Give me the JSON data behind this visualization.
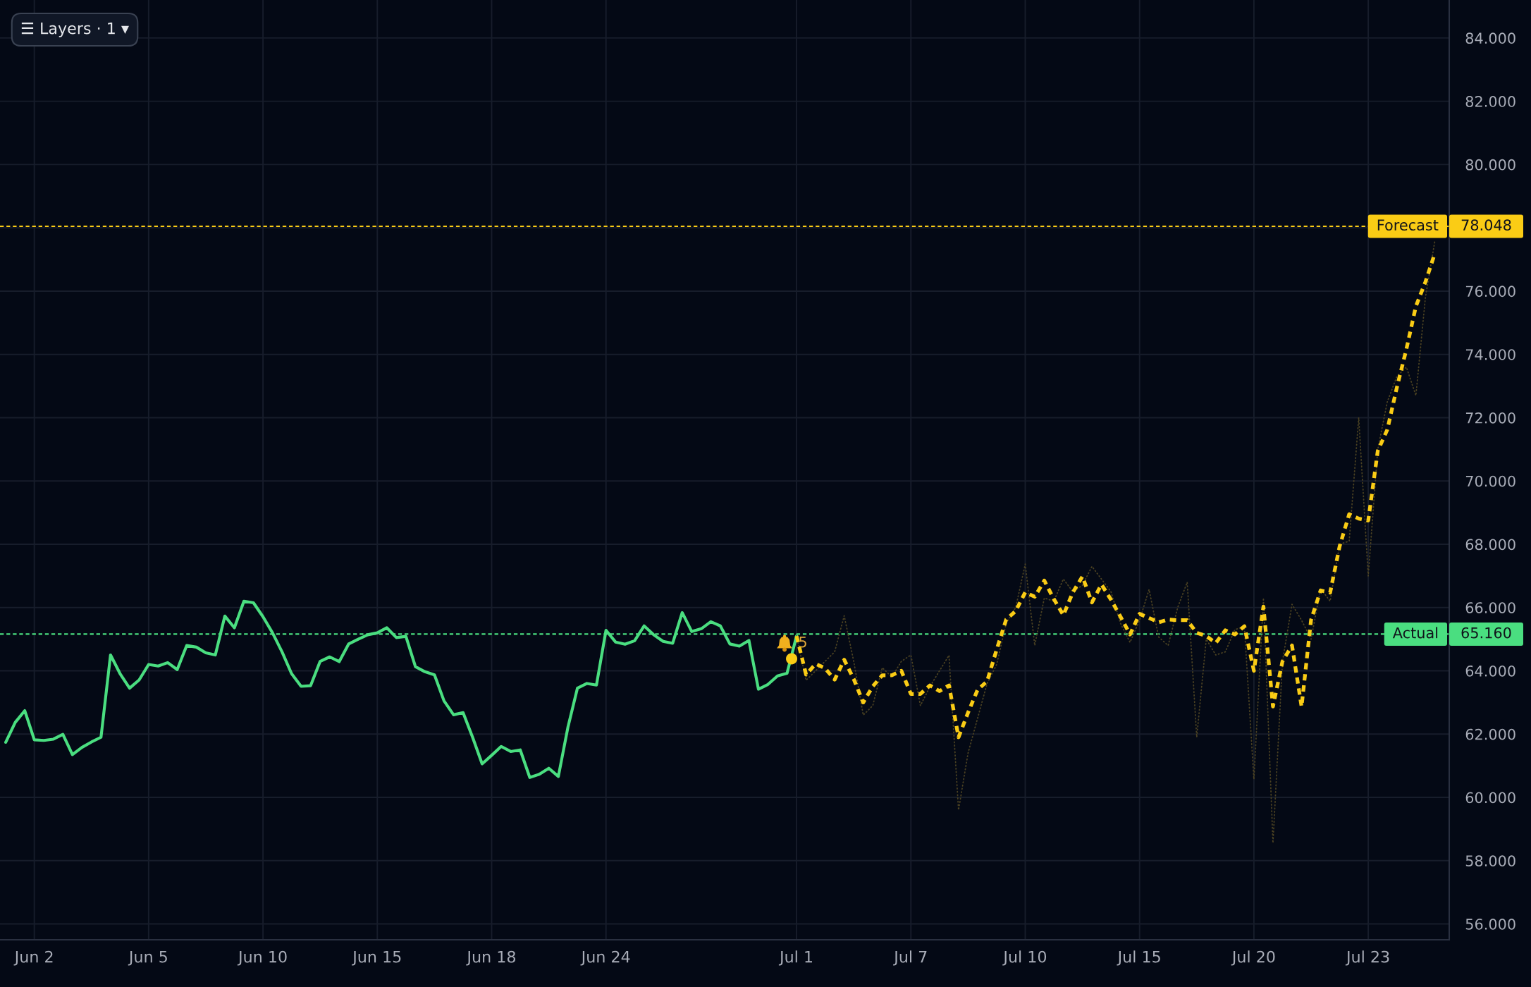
{
  "chart_data": {
    "type": "line",
    "categories": [
      null,
      null,
      null,
      "Jun 2",
      null,
      null,
      null,
      null,
      null,
      null,
      null,
      null,
      null,
      null,
      null,
      "Jun 5",
      null,
      null,
      null,
      null,
      null,
      null,
      null,
      null,
      null,
      null,
      null,
      "Jun 10",
      null,
      null,
      null,
      null,
      null,
      null,
      null,
      null,
      null,
      null,
      null,
      "Jun 15",
      null,
      null,
      null,
      null,
      null,
      null,
      null,
      null,
      null,
      null,
      null,
      "Jun 18",
      null,
      null,
      null,
      null,
      null,
      null,
      null,
      null,
      null,
      null,
      null,
      "Jun 24",
      null,
      null,
      null,
      null,
      null,
      null,
      null,
      null,
      null,
      null,
      null,
      null,
      null,
      null,
      null,
      null,
      null,
      null,
      null,
      "Jul 1",
      null,
      null,
      null,
      null,
      null,
      null,
      null,
      null,
      null,
      null,
      null,
      "Jul 7",
      null,
      null,
      null,
      null,
      null,
      null,
      null,
      null,
      null,
      null,
      null,
      "Jul 10",
      null,
      null,
      null,
      null,
      null,
      null,
      null,
      null,
      null,
      null,
      null,
      "Jul 15",
      null,
      null,
      null,
      null,
      null,
      null,
      null,
      null,
      null,
      null,
      null,
      "Jul 20",
      null,
      null,
      null,
      null,
      null,
      null,
      null,
      null,
      null,
      null,
      null,
      "Jul 23",
      null,
      null,
      null,
      null,
      null,
      null,
      null
    ],
    "series": [
      {
        "color": "#4ade80",
        "line_style": "solid",
        "values": [
          61.74,
          62.37,
          62.74,
          61.82,
          61.8,
          61.84,
          61.99,
          61.35,
          61.58,
          61.75,
          61.9,
          64.5,
          63.91,
          63.45,
          63.71,
          64.2,
          64.15,
          64.26,
          64.04,
          64.8,
          64.75,
          64.57,
          64.5,
          65.73,
          65.36,
          66.2,
          66.15,
          65.71,
          65.2,
          64.6,
          63.91,
          63.51,
          63.53,
          64.3,
          64.44,
          64.29,
          64.85,
          65.0,
          65.14,
          65.2,
          65.36,
          65.05,
          65.09,
          64.13,
          63.97,
          63.87,
          63.05,
          62.61,
          62.68,
          61.9,
          61.06,
          61.33,
          61.61,
          61.45,
          61.5,
          60.63,
          60.73,
          60.92,
          60.66,
          62.21,
          63.45,
          63.6,
          63.55,
          65.28,
          64.91,
          64.84,
          64.95,
          65.42,
          65.14,
          64.93,
          64.87,
          65.84,
          65.24,
          65.33,
          65.55,
          65.42,
          64.85,
          64.78,
          64.96,
          63.42,
          63.57,
          63.84,
          63.92,
          65.1,
          null,
          null,
          null,
          null,
          null,
          null,
          null,
          null,
          null,
          null,
          null,
          null,
          null,
          null,
          null,
          null,
          null,
          null,
          null,
          null,
          null,
          null,
          null,
          null,
          null,
          null,
          null,
          null,
          null,
          null,
          null,
          null,
          null,
          null,
          null,
          null,
          null,
          null,
          null,
          null,
          null,
          null,
          null,
          null,
          null,
          null,
          null,
          null,
          null,
          null,
          null,
          null,
          null,
          null,
          null,
          null,
          null,
          null,
          null,
          null,
          null,
          null,
          null,
          null,
          null,
          null,
          null
        ]
      },
      {
        "color": "#4a4122",
        "line_style": "dotted",
        "values": [
          null,
          null,
          null,
          null,
          null,
          null,
          null,
          null,
          null,
          null,
          null,
          null,
          null,
          null,
          null,
          null,
          null,
          null,
          null,
          null,
          null,
          null,
          null,
          null,
          null,
          null,
          null,
          null,
          null,
          null,
          null,
          null,
          null,
          null,
          null,
          null,
          null,
          null,
          null,
          null,
          null,
          null,
          null,
          null,
          null,
          null,
          null,
          null,
          null,
          null,
          null,
          null,
          null,
          null,
          null,
          null,
          null,
          null,
          null,
          null,
          null,
          null,
          null,
          null,
          null,
          null,
          null,
          null,
          null,
          null,
          null,
          null,
          null,
          null,
          null,
          null,
          null,
          null,
          null,
          null,
          null,
          null,
          null,
          65.1,
          63.7,
          64.0,
          64.3,
          64.6,
          65.74,
          64.3,
          62.6,
          62.9,
          64.1,
          63.8,
          64.3,
          64.5,
          62.9,
          63.5,
          64.0,
          64.49,
          59.6,
          61.4,
          62.5,
          63.6,
          64.2,
          65.5,
          66.0,
          67.37,
          64.8,
          66.3,
          66.2,
          66.9,
          66.5,
          66.7,
          67.3,
          66.9,
          66.5,
          65.5,
          64.9,
          65.6,
          66.57,
          65.07,
          64.8,
          66.0,
          66.8,
          61.9,
          65.0,
          64.5,
          64.6,
          65.3,
          65.4,
          60.57,
          66.3,
          58.56,
          64.3,
          66.1,
          65.6,
          65.0,
          66.6,
          66.2,
          68.0,
          68.1,
          72.0,
          67.0,
          71.0,
          72.5,
          73.3,
          73.6,
          72.7,
          75.8,
          77.6
        ]
      },
      {
        "color": "#facc15",
        "line_style": "dashed",
        "values": [
          null,
          null,
          null,
          null,
          null,
          null,
          null,
          null,
          null,
          null,
          null,
          null,
          null,
          null,
          null,
          null,
          null,
          null,
          null,
          null,
          null,
          null,
          null,
          null,
          null,
          null,
          null,
          null,
          null,
          null,
          null,
          null,
          null,
          null,
          null,
          null,
          null,
          null,
          null,
          null,
          null,
          null,
          null,
          null,
          null,
          null,
          null,
          null,
          null,
          null,
          null,
          null,
          null,
          null,
          null,
          null,
          null,
          null,
          null,
          null,
          null,
          null,
          null,
          null,
          null,
          null,
          null,
          null,
          null,
          null,
          null,
          null,
          null,
          null,
          null,
          null,
          null,
          null,
          null,
          null,
          null,
          null,
          null,
          65.1,
          63.88,
          64.22,
          64.08,
          63.72,
          64.35,
          63.74,
          63.0,
          63.51,
          63.86,
          63.86,
          64.0,
          63.27,
          63.27,
          63.54,
          63.36,
          63.54,
          61.9,
          62.68,
          63.4,
          63.67,
          64.67,
          65.62,
          65.89,
          66.48,
          66.34,
          66.85,
          66.27,
          65.76,
          66.48,
          66.98,
          66.16,
          66.73,
          66.25,
          65.71,
          65.15,
          65.8,
          65.67,
          65.53,
          65.62,
          65.6,
          65.6,
          65.2,
          65.1,
          64.88,
          65.28,
          65.15,
          65.41,
          64.0,
          66.03,
          62.87,
          64.3,
          64.8,
          62.87,
          65.61,
          66.54,
          66.47,
          67.94,
          68.95,
          68.81,
          68.75,
          70.95,
          71.62,
          72.95,
          74.16,
          75.52,
          76.29,
          77.2
        ]
      }
    ],
    "ylim": [
      55.5,
      85.2
    ],
    "yticks": [
      {
        "value": 56,
        "label": "56.000"
      },
      {
        "value": 58,
        "label": "58.000"
      },
      {
        "value": 60,
        "label": "60.000"
      },
      {
        "value": 62,
        "label": "62.000"
      },
      {
        "value": 64,
        "label": "64.000"
      },
      {
        "value": 66,
        "label": "66.000"
      },
      {
        "value": 68,
        "label": "68.000"
      },
      {
        "value": 70,
        "label": "70.000"
      },
      {
        "value": 72,
        "label": "72.000"
      },
      {
        "value": 74,
        "label": "74.000"
      },
      {
        "value": 76,
        "label": "76.000"
      },
      {
        "value": 78,
        "label": null
      },
      {
        "value": 80,
        "label": "80.000"
      },
      {
        "value": 82,
        "label": "82.000"
      },
      {
        "value": 84,
        "label": "84.000"
      }
    ],
    "grid": true,
    "ref_lines": [
      {
        "axis": "y",
        "value": 78.048,
        "label": "Forecast",
        "color": "#facc15",
        "line_style": "dotted"
      },
      {
        "axis": "y",
        "value": 65.16,
        "label": "Actual",
        "color": "#4ade80",
        "line_style": "dotted"
      }
    ],
    "annotations": [
      "☰ Layers · 1 ▾",
      {
        "text": "5",
        "x": "Jul 1",
        "y": 64.87
      },
      "78.048",
      "65.160"
    ]
  }
}
